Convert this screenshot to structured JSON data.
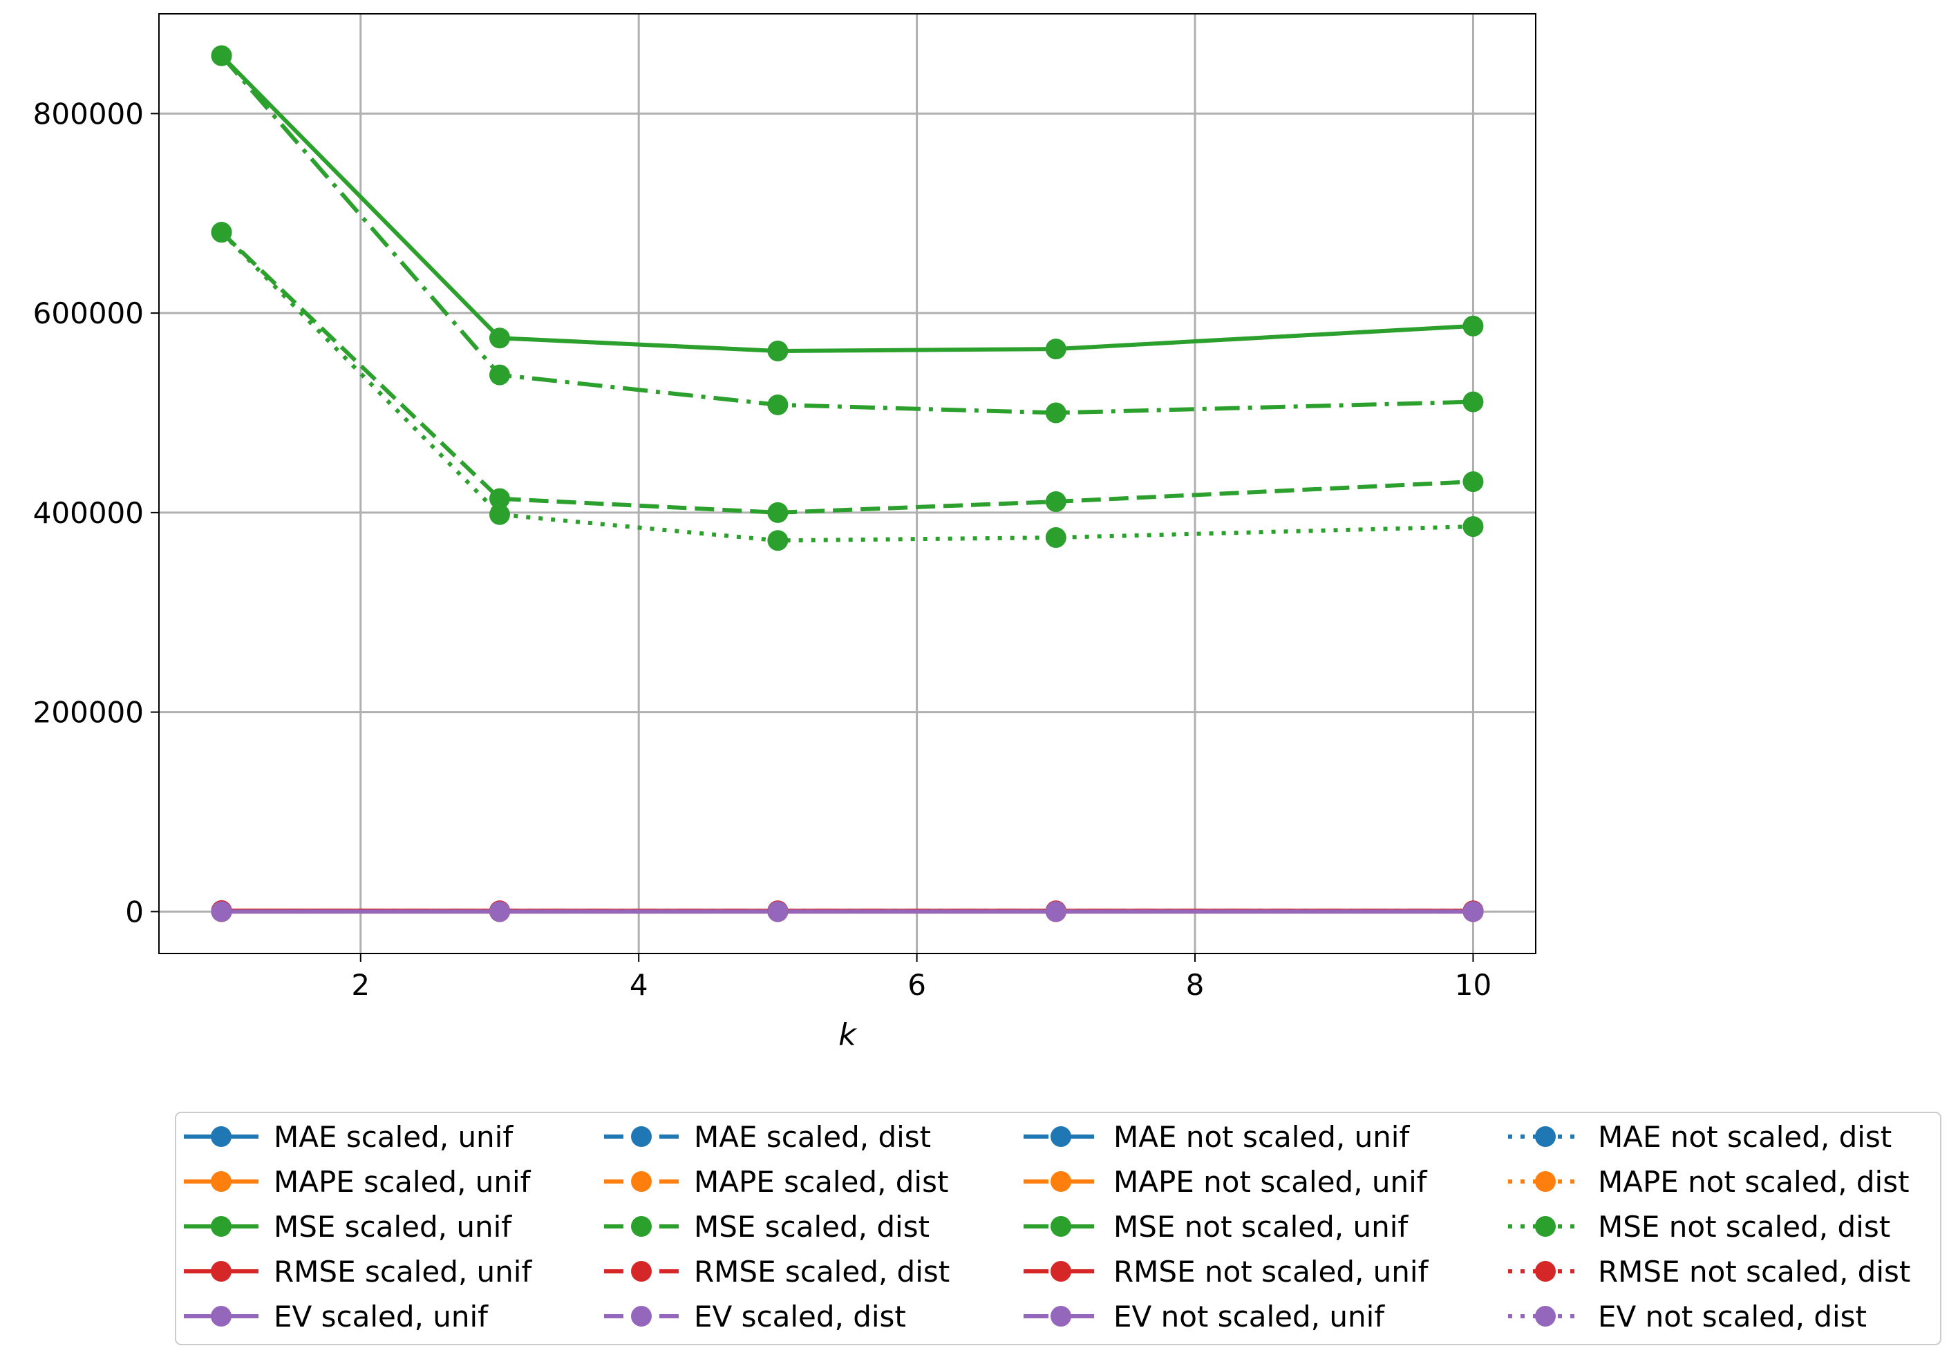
{
  "chart_data": {
    "type": "line",
    "xlabel": "k",
    "ylabel": "",
    "title": "",
    "xlim": [
      0.55,
      10.45
    ],
    "ylim": [
      -42000,
      900000
    ],
    "xticks": [
      2,
      4,
      6,
      8,
      10
    ],
    "yticks": [
      0,
      200000,
      400000,
      600000,
      800000
    ],
    "x": [
      1,
      3,
      5,
      7,
      10
    ],
    "grid": true,
    "legend_position": "bottom",
    "legend_columns": 4,
    "series": [
      {
        "name": "MAE scaled, unif",
        "color": "#1f77b4",
        "dash": "solid",
        "values": [
          500,
          440,
          430,
          430,
          440
        ]
      },
      {
        "name": "MAPE scaled, unif",
        "color": "#ff7f0e",
        "dash": "solid",
        "values": [
          1.2,
          1.0,
          1.0,
          1.0,
          1.0
        ]
      },
      {
        "name": "MSE scaled, unif",
        "color": "#2ca02c",
        "dash": "solid",
        "values": [
          858000,
          575000,
          562000,
          564000,
          587000
        ]
      },
      {
        "name": "RMSE scaled, unif",
        "color": "#d62728",
        "dash": "solid",
        "values": [
          926,
          758,
          750,
          751,
          766
        ]
      },
      {
        "name": "EV scaled, unif",
        "color": "#9467bd",
        "dash": "solid",
        "values": [
          0.1,
          0.4,
          0.4,
          0.4,
          0.4
        ]
      },
      {
        "name": "MAE scaled, dist",
        "color": "#1f77b4",
        "dash": "dashed",
        "values": [
          450,
          360,
          350,
          355,
          365
        ]
      },
      {
        "name": "MAPE scaled, dist",
        "color": "#ff7f0e",
        "dash": "dashed",
        "values": [
          1.0,
          0.8,
          0.8,
          0.8,
          0.8
        ]
      },
      {
        "name": "MSE scaled, dist",
        "color": "#2ca02c",
        "dash": "dashed",
        "values": [
          681000,
          414000,
          400000,
          411000,
          431000
        ]
      },
      {
        "name": "RMSE scaled, dist",
        "color": "#d62728",
        "dash": "dashed",
        "values": [
          825,
          643,
          632,
          641,
          656
        ]
      },
      {
        "name": "EV scaled, dist",
        "color": "#9467bd",
        "dash": "dashed",
        "values": [
          0.3,
          0.6,
          0.6,
          0.6,
          0.6
        ]
      },
      {
        "name": "MAE not scaled, unif",
        "color": "#1f77b4",
        "dash": "dashdot",
        "values": [
          500,
          420,
          410,
          405,
          410
        ]
      },
      {
        "name": "MAPE not scaled, unif",
        "color": "#ff7f0e",
        "dash": "dashdot",
        "values": [
          1.2,
          1.0,
          0.9,
          0.9,
          0.9
        ]
      },
      {
        "name": "MSE not scaled, unif",
        "color": "#2ca02c",
        "dash": "dashdot",
        "values": [
          858000,
          538000,
          508000,
          500000,
          511000
        ]
      },
      {
        "name": "RMSE not scaled, unif",
        "color": "#d62728",
        "dash": "dashdot",
        "values": [
          926,
          733,
          713,
          707,
          715
        ]
      },
      {
        "name": "EV not scaled, unif",
        "color": "#9467bd",
        "dash": "dashdot",
        "values": [
          0.1,
          0.4,
          0.5,
          0.5,
          0.5
        ]
      },
      {
        "name": "MAE not scaled, dist",
        "color": "#1f77b4",
        "dash": "dotted",
        "values": [
          450,
          340,
          330,
          332,
          338
        ]
      },
      {
        "name": "MAPE not scaled, dist",
        "color": "#ff7f0e",
        "dash": "dotted",
        "values": [
          1.0,
          0.8,
          0.7,
          0.7,
          0.7
        ]
      },
      {
        "name": "MSE not scaled, dist",
        "color": "#2ca02c",
        "dash": "dotted",
        "values": [
          681000,
          398000,
          372000,
          375000,
          386000
        ]
      },
      {
        "name": "RMSE not scaled, dist",
        "color": "#d62728",
        "dash": "dotted",
        "values": [
          825,
          631,
          610,
          612,
          621
        ]
      },
      {
        "name": "EV not scaled, dist",
        "color": "#9467bd",
        "dash": "dotted",
        "values": [
          0.3,
          0.6,
          0.6,
          0.6,
          0.6
        ]
      }
    ]
  }
}
